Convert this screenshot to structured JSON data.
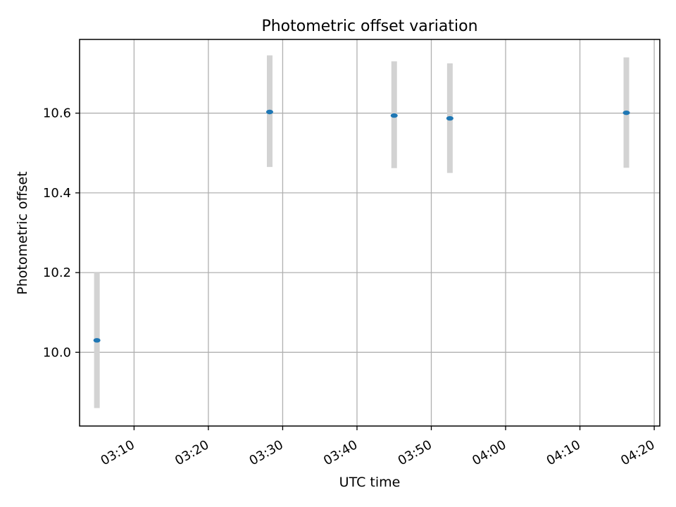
{
  "chart_data": {
    "type": "scatter",
    "title": "Photometric offset variation",
    "xlabel": "UTC time",
    "ylabel": "Photometric offset",
    "x_unit": "UTC time of day (HH:MM)",
    "xlim": [
      "03:02:40",
      "04:20:45"
    ],
    "ylim": [
      9.815,
      10.785
    ],
    "x_ticks": [
      "03:10",
      "03:20",
      "03:30",
      "03:40",
      "03:50",
      "04:00",
      "04:10",
      "04:20"
    ],
    "y_ticks": [
      10.0,
      10.2,
      10.4,
      10.6
    ],
    "y_tick_labels": [
      "10.0",
      "10.2",
      "10.4",
      "10.6"
    ],
    "grid": true,
    "series": [
      {
        "marker_color": "#1f77b4",
        "errorbar_color": "#d3d3d3",
        "points": [
          {
            "x": "03:05:00",
            "y": 10.03,
            "yerr_low": 9.86,
            "yerr_high": 10.2
          },
          {
            "x": "03:28:15",
            "y": 10.603,
            "yerr_low": 10.465,
            "yerr_high": 10.745
          },
          {
            "x": "03:45:00",
            "y": 10.594,
            "yerr_low": 10.462,
            "yerr_high": 10.73
          },
          {
            "x": "03:52:30",
            "y": 10.587,
            "yerr_low": 10.45,
            "yerr_high": 10.725
          },
          {
            "x": "04:16:15",
            "y": 10.601,
            "yerr_low": 10.463,
            "yerr_high": 10.74
          }
        ]
      }
    ]
  }
}
